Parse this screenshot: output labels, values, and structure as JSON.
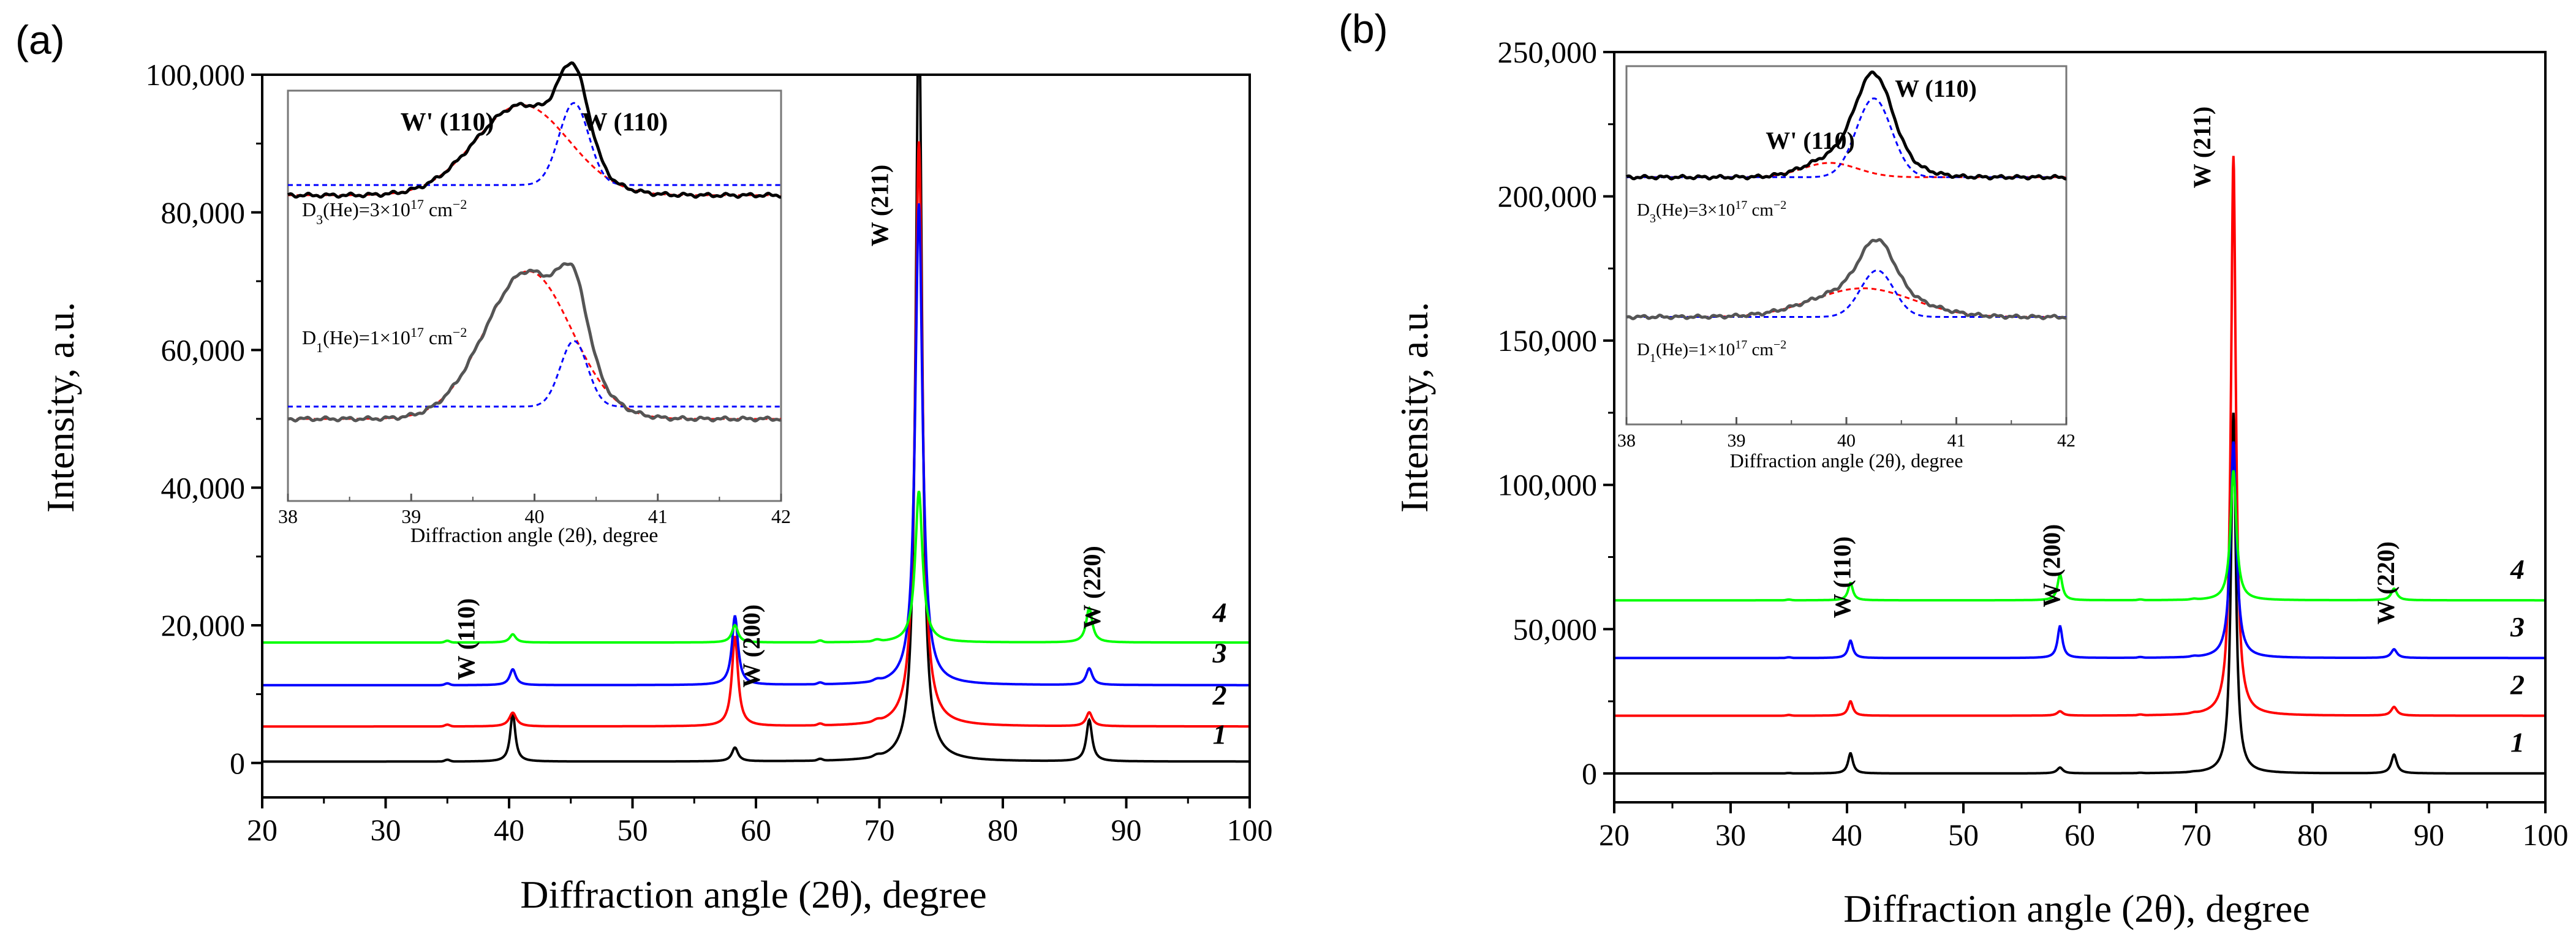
{
  "colors": {
    "s1": "#000000",
    "s2": "#ff0000",
    "s3": "#0000ff",
    "s4": "#00ff00",
    "fit_red": "#ff0000",
    "fit_blue": "#0000ff",
    "inset_gray": "#555555"
  },
  "chart_data": [
    {
      "panel_label": "(a)",
      "type": "line",
      "xlabel": "Diffraction angle (2θ), degree",
      "ylabel": "Intensity, a.u.",
      "xlim": [
        20,
        100
      ],
      "ylim": [
        -5000,
        100000
      ],
      "xticks": [
        20,
        30,
        40,
        50,
        60,
        70,
        80,
        90,
        100
      ],
      "yticks": [
        0,
        20000,
        40000,
        60000,
        80000,
        100000
      ],
      "ytick_labels": [
        "0",
        "20,000",
        "40,000",
        "60,000",
        "80,000",
        "100,000"
      ],
      "series": [
        {
          "name": "1",
          "color": "#000000",
          "baseline": 200,
          "peaks": [
            [
              40.3,
              7000,
              0.25
            ],
            [
              58.3,
              2000,
              0.3
            ],
            [
              73.2,
              112000,
              0.3
            ],
            [
              87.0,
              6000,
              0.28
            ]
          ]
        },
        {
          "name": "2",
          "color": "#ff0000",
          "baseline": 5300,
          "peaks": [
            [
              40.3,
              2000,
              0.35
            ],
            [
              58.3,
              13000,
              0.3
            ],
            [
              73.2,
              85000,
              0.35
            ],
            [
              87.0,
              2000,
              0.3
            ]
          ]
        },
        {
          "name": "3",
          "color": "#0000ff",
          "baseline": 11300,
          "peaks": [
            [
              40.3,
              2300,
              0.3
            ],
            [
              58.3,
              10000,
              0.3
            ],
            [
              73.2,
              70000,
              0.35
            ],
            [
              87.0,
              2400,
              0.3
            ]
          ]
        },
        {
          "name": "4",
          "color": "#00ff00",
          "baseline": 17500,
          "peaks": [
            [
              40.3,
              1200,
              0.3
            ],
            [
              58.3,
              2500,
              0.3
            ],
            [
              73.2,
              22000,
              0.35
            ],
            [
              87.0,
              5000,
              0.3
            ]
          ]
        }
      ],
      "series_labels": [
        {
          "text": "1",
          "x": 97,
          "y": 2800
        },
        {
          "text": "2",
          "x": 97,
          "y": 8500
        },
        {
          "text": "3",
          "x": 97,
          "y": 14600
        },
        {
          "text": "4",
          "x": 97,
          "y": 20500
        }
      ],
      "peak_labels": [
        {
          "text": "W (110)",
          "x": 37.2,
          "y": 18000,
          "rotate": -90
        },
        {
          "text": "W (200)",
          "x": 60.3,
          "y": 17000,
          "rotate": -90
        },
        {
          "text": "W (211)",
          "x": 70.7,
          "y": 81000,
          "rotate": -90
        },
        {
          "text": "W (220)",
          "x": 87.9,
          "y": 25500,
          "rotate": -90
        }
      ],
      "inset": {
        "xlabel": "Diffraction angle (2θ), degree",
        "xlim": [
          38,
          42
        ],
        "xticks": [
          38,
          39,
          40,
          41,
          42
        ],
        "title_red": "W' (110)",
        "title_blue": "W (110)",
        "annotation_top": "D3(He)=3×10^17 cm^-2",
        "annotation_bottom": "D1(He)=1×10^17 cm^-2"
      }
    },
    {
      "panel_label": "(b)",
      "type": "line",
      "xlabel": "Diffraction angle (2θ), degree",
      "ylabel": "Intensity, a.u.",
      "xlim": [
        20,
        100
      ],
      "ylim": [
        -10000,
        250000
      ],
      "xticks": [
        20,
        30,
        40,
        50,
        60,
        70,
        80,
        90,
        100
      ],
      "yticks": [
        0,
        50000,
        100000,
        150000,
        200000,
        250000
      ],
      "ytick_labels": [
        "0",
        "50,000",
        "100,000",
        "150,000",
        "200,000",
        "250,000"
      ],
      "series": [
        {
          "name": "1",
          "color": "#000000",
          "baseline": 0,
          "peaks": [
            [
              40.3,
              7000,
              0.25
            ],
            [
              58.3,
              2000,
              0.3
            ],
            [
              73.2,
              125000,
              0.25
            ],
            [
              87.0,
              6500,
              0.28
            ]
          ]
        },
        {
          "name": "2",
          "color": "#ff0000",
          "baseline": 20000,
          "peaks": [
            [
              40.3,
              5000,
              0.25
            ],
            [
              58.3,
              1500,
              0.3
            ],
            [
              73.2,
              194000,
              0.25
            ],
            [
              87.0,
              3000,
              0.3
            ]
          ]
        },
        {
          "name": "3",
          "color": "#0000ff",
          "baseline": 40000,
          "peaks": [
            [
              40.3,
              6000,
              0.25
            ],
            [
              58.3,
              11000,
              0.25
            ],
            [
              73.2,
              75000,
              0.3
            ],
            [
              87.0,
              3000,
              0.3
            ]
          ]
        },
        {
          "name": "4",
          "color": "#00ff00",
          "baseline": 60000,
          "peaks": [
            [
              40.3,
              6000,
              0.25
            ],
            [
              58.3,
              9000,
              0.25
            ],
            [
              73.2,
              45000,
              0.3
            ],
            [
              87.0,
              4000,
              0.3
            ]
          ]
        }
      ],
      "series_labels": [
        {
          "text": "1",
          "x": 97,
          "y": 7500
        },
        {
          "text": "2",
          "x": 97,
          "y": 27500
        },
        {
          "text": "3",
          "x": 97,
          "y": 47500
        },
        {
          "text": "4",
          "x": 97,
          "y": 67500
        }
      ],
      "peak_labels": [
        {
          "text": "W (110)",
          "x": 40.3,
          "y": 68000,
          "rotate": -90
        },
        {
          "text": "W (200)",
          "x": 58.3,
          "y": 72000,
          "rotate": -90
        },
        {
          "text": "W (211)",
          "x": 71.2,
          "y": 217000,
          "rotate": -90
        },
        {
          "text": "W (220)",
          "x": 87.0,
          "y": 66000,
          "rotate": -90
        }
      ],
      "inset": {
        "xlabel": "Diffraction angle (2θ), degree",
        "xlim": [
          38,
          42
        ],
        "xticks": [
          38,
          39,
          40,
          41,
          42
        ],
        "title_red": "W' (110)",
        "title_blue": "W (110)",
        "annotation_top": "D3(He)=3×10^17 cm^-2",
        "annotation_bottom": "D1(He)=1×10^17 cm^-2"
      }
    }
  ]
}
